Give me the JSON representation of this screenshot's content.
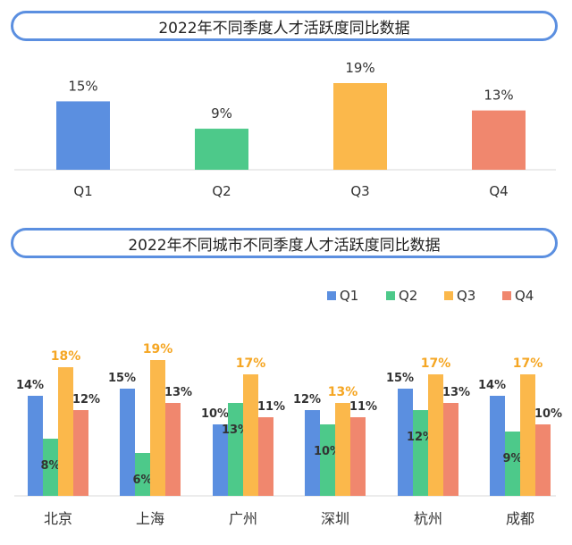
{
  "chart_data": [
    {
      "type": "bar",
      "title": "2022年不同季度人才活跃度同比数据",
      "categories": [
        "Q1",
        "Q2",
        "Q3",
        "Q4"
      ],
      "values": [
        15,
        9,
        19,
        13
      ],
      "data_labels": [
        "15%",
        "9%",
        "19%",
        "13%"
      ],
      "unit": "%",
      "colors": [
        "#5b8fe0",
        "#4dc98a",
        "#fbb84b",
        "#f0876e"
      ],
      "ylim": [
        0,
        19
      ],
      "grid": false,
      "legend": "none"
    },
    {
      "type": "bar",
      "title": "2022年不同城市不同季度人才活跃度同比数据",
      "categories": [
        "北京",
        "上海",
        "广州",
        "深圳",
        "杭州",
        "成都"
      ],
      "series": [
        {
          "name": "Q1",
          "color": "#5b8fe0",
          "values": [
            14,
            15,
            10,
            12,
            15,
            14
          ],
          "labels": [
            "14%",
            "15%",
            "10%",
            "12%",
            "15%",
            "14%"
          ]
        },
        {
          "name": "Q2",
          "color": "#4dc98a",
          "values": [
            8,
            6,
            13,
            10,
            12,
            9
          ],
          "labels": [
            "8%",
            "6%",
            "13%",
            "10%",
            "12%",
            "9%"
          ]
        },
        {
          "name": "Q3",
          "color": "#fbb84b",
          "values": [
            18,
            19,
            17,
            13,
            17,
            17
          ],
          "labels": [
            "18%",
            "19%",
            "17%",
            "13%",
            "17%",
            "17%"
          ]
        },
        {
          "name": "Q4",
          "color": "#f0876e",
          "values": [
            12,
            13,
            11,
            11,
            13,
            10
          ],
          "labels": [
            "12%",
            "13%",
            "11%",
            "11%",
            "13%",
            "10%"
          ]
        }
      ],
      "unit": "%",
      "ylim": [
        0,
        19
      ],
      "grid": false,
      "legend": "top-right"
    }
  ]
}
